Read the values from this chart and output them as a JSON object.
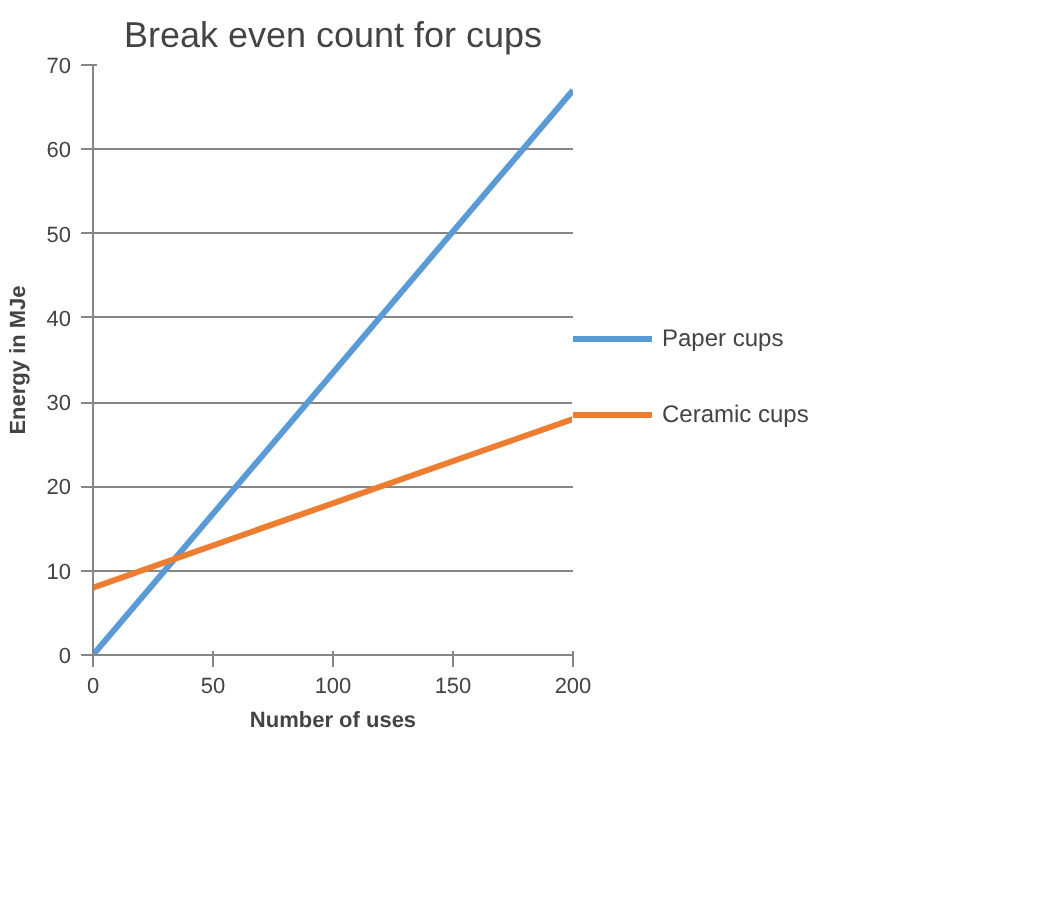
{
  "chart_data": {
    "type": "line",
    "title": "Break even count for cups",
    "xlabel": "Number of uses",
    "ylabel": "Energy in MJe",
    "x": [
      0,
      200
    ],
    "series": [
      {
        "name": "Paper cups",
        "color": "#5b9bd5",
        "values": [
          0,
          67
        ]
      },
      {
        "name": "Ceramic cups",
        "color": "#ed7d31",
        "values": [
          8,
          28
        ]
      }
    ],
    "xlim": [
      0,
      200
    ],
    "xticks": [
      0,
      50,
      100,
      150,
      200
    ],
    "ylim": [
      0,
      70
    ],
    "yticks": [
      0,
      10,
      20,
      30,
      40,
      50,
      60,
      70
    ],
    "grid": "y",
    "legend": "right",
    "marker": "none",
    "line_style": "solid"
  }
}
